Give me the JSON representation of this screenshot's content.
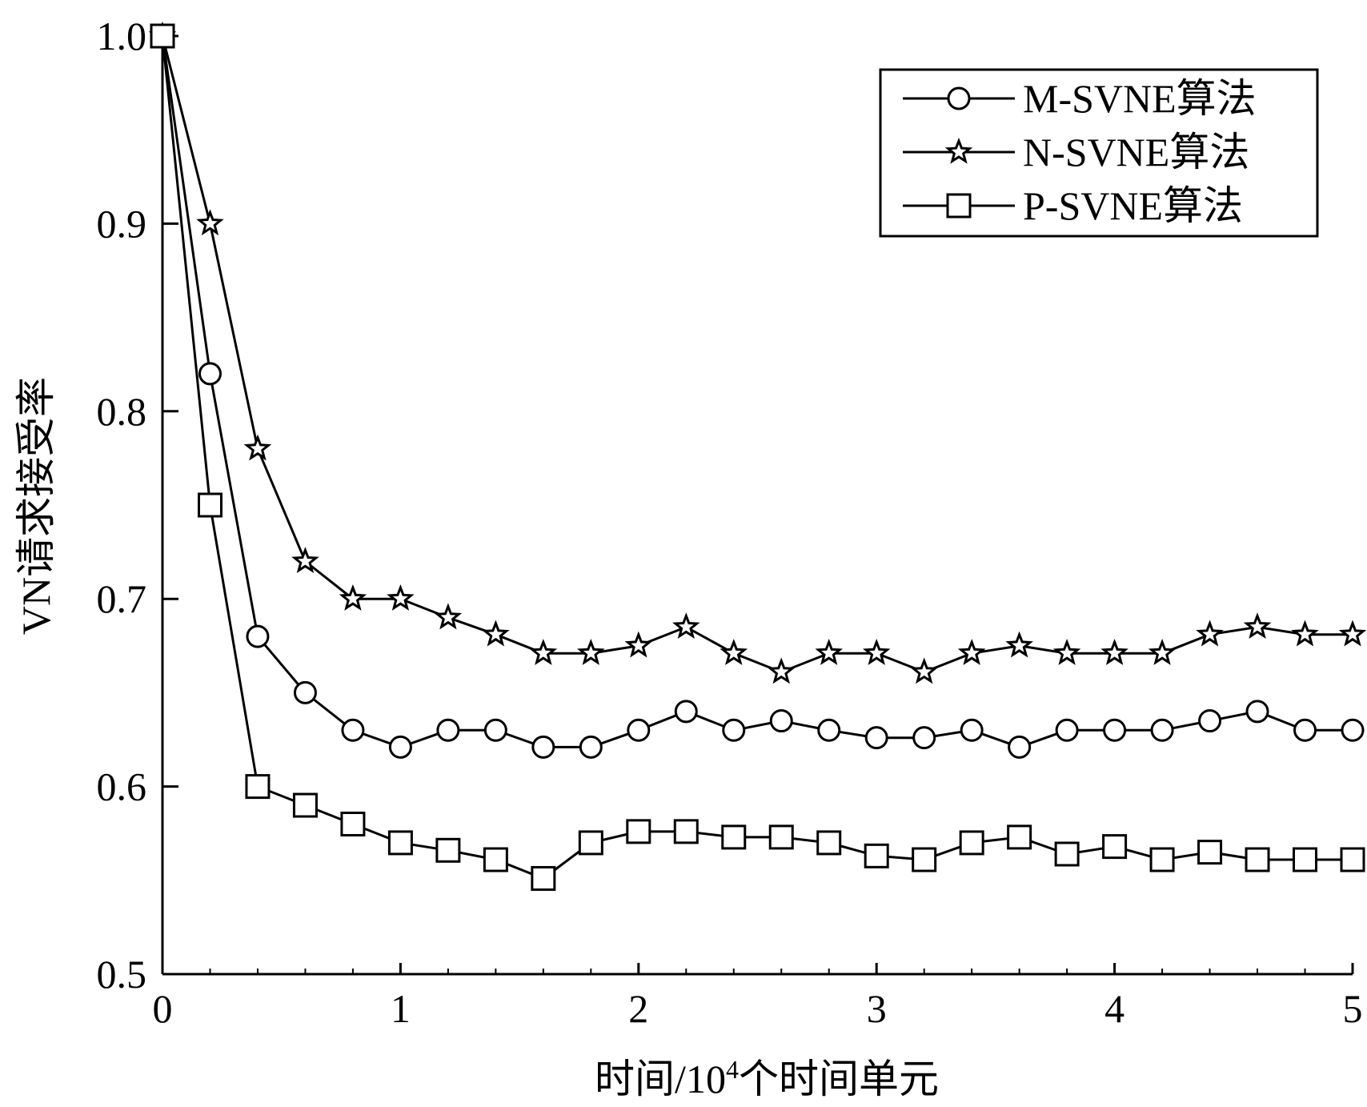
{
  "chart_data": {
    "type": "line",
    "title": "",
    "xlabel": "时间/10",
    "xlabel_sup": "4",
    "xlabel_suffix": "个时间单元",
    "ylabel": "VN请求接受率",
    "xlim": [
      0,
      5
    ],
    "ylim": [
      0.5,
      1.0
    ],
    "x_ticks": [
      0,
      1,
      2,
      3,
      4,
      5
    ],
    "x_tick_labels": [
      "0",
      "1",
      "2",
      "3",
      "4",
      "5"
    ],
    "y_ticks": [
      0.5,
      0.6,
      0.7,
      0.8,
      0.9,
      1.0
    ],
    "y_tick_labels": [
      "0.5",
      "0.6",
      "0.7",
      "0.8",
      "0.9",
      "1.0"
    ],
    "grid": false,
    "legend_position": "top-right",
    "x": [
      0,
      0.2,
      0.4,
      0.6,
      0.8,
      1.0,
      1.2,
      1.4,
      1.6,
      1.8,
      2.0,
      2.2,
      2.4,
      2.6,
      2.8,
      3.0,
      3.2,
      3.4,
      3.6,
      3.8,
      4.0,
      4.2,
      4.4,
      4.6,
      4.8,
      5.0
    ],
    "series": [
      {
        "name": "M-SVNE算法",
        "marker": "circle",
        "values": [
          1.0,
          0.82,
          0.68,
          0.65,
          0.63,
          0.621,
          0.63,
          0.63,
          0.621,
          0.621,
          0.63,
          0.64,
          0.63,
          0.635,
          0.63,
          0.626,
          0.626,
          0.63,
          0.621,
          0.63,
          0.63,
          0.63,
          0.635,
          0.64,
          0.63,
          0.63
        ]
      },
      {
        "name": "N-SVNE算法",
        "marker": "star",
        "values": [
          1.0,
          0.9,
          0.78,
          0.72,
          0.7,
          0.7,
          0.69,
          0.681,
          0.671,
          0.671,
          0.675,
          0.685,
          0.671,
          0.661,
          0.671,
          0.671,
          0.661,
          0.671,
          0.675,
          0.671,
          0.671,
          0.671,
          0.681,
          0.685,
          0.681,
          0.681
        ]
      },
      {
        "name": "P-SVNE算法",
        "marker": "square",
        "values": [
          1.0,
          0.75,
          0.6,
          0.59,
          0.58,
          0.57,
          0.566,
          0.561,
          0.551,
          0.57,
          0.576,
          0.576,
          0.573,
          0.573,
          0.57,
          0.563,
          0.561,
          0.57,
          0.573,
          0.564,
          0.568,
          0.561,
          0.565,
          0.561,
          0.561,
          0.561
        ]
      }
    ]
  }
}
